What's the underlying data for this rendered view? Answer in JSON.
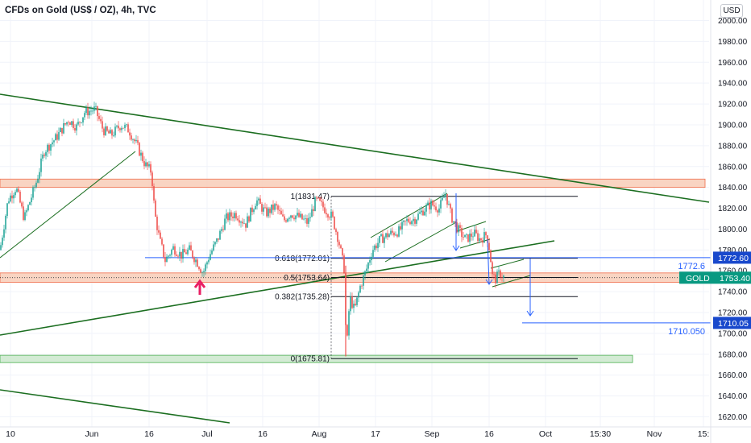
{
  "header": {
    "title": "CFDs on Gold (US$ / OZ), 4h, TVC",
    "currency": "USD"
  },
  "chart_data": {
    "type": "candlestick",
    "symbol": "GOLD",
    "ylim": [
      1615,
      2008
    ],
    "y_ticks": [
      1620,
      1640,
      1660,
      1680,
      1700,
      1720,
      1740,
      1760,
      1780,
      1800,
      1820,
      1840,
      1860,
      1880,
      1900,
      1920,
      1940,
      1960,
      1980,
      2000
    ],
    "x_ticks": [
      "10",
      "Jun",
      "16",
      "Jul",
      "16",
      "Aug",
      "17",
      "Sep",
      "16",
      "Oct",
      "15:30",
      "Nov",
      "15:"
    ],
    "grid": true,
    "colors": {
      "up": "#26a69a",
      "down": "#ef5350",
      "trendline": "#1b6e20",
      "fib": "#131722",
      "blue": "#2962ff",
      "zone_red": "#f7c9b3",
      "zone_green": "#c8e6c9",
      "price_tag": "#089981",
      "arrow": "#e91e63"
    },
    "price_path": [
      [
        0,
        1780
      ],
      [
        10,
        1828
      ],
      [
        20,
        1840
      ],
      [
        30,
        1810
      ],
      [
        45,
        1845
      ],
      [
        55,
        1875
      ],
      [
        70,
        1888
      ],
      [
        85,
        1905
      ],
      [
        95,
        1898
      ],
      [
        105,
        1912
      ],
      [
        118,
        1915
      ],
      [
        128,
        1895
      ],
      [
        138,
        1890
      ],
      [
        150,
        1900
      ],
      [
        160,
        1895
      ],
      [
        170,
        1880
      ],
      [
        180,
        1862
      ],
      [
        188,
        1855
      ],
      [
        192,
        1815
      ],
      [
        198,
        1790
      ],
      [
        205,
        1770
      ],
      [
        215,
        1782
      ],
      [
        225,
        1775
      ],
      [
        235,
        1780
      ],
      [
        245,
        1768
      ],
      [
        252,
        1758
      ],
      [
        260,
        1775
      ],
      [
        270,
        1790
      ],
      [
        280,
        1810
      ],
      [
        292,
        1815
      ],
      [
        305,
        1805
      ],
      [
        318,
        1828
      ],
      [
        330,
        1815
      ],
      [
        342,
        1822
      ],
      [
        352,
        1808
      ],
      [
        360,
        1815
      ],
      [
        370,
        1812
      ],
      [
        382,
        1806
      ],
      [
        392,
        1828
      ],
      [
        400,
        1822
      ],
      [
        412,
        1812
      ],
      [
        420,
        1790
      ],
      [
        427,
        1762
      ],
      [
        430,
        1680
      ],
      [
        434,
        1735
      ],
      [
        440,
        1722
      ],
      [
        447,
        1745
      ],
      [
        455,
        1762
      ],
      [
        462,
        1780
      ],
      [
        472,
        1790
      ],
      [
        482,
        1795
      ],
      [
        495,
        1798
      ],
      [
        505,
        1808
      ],
      [
        515,
        1810
      ],
      [
        525,
        1818
      ],
      [
        535,
        1824
      ],
      [
        545,
        1820
      ],
      [
        553,
        1834
      ],
      [
        560,
        1812
      ],
      [
        568,
        1800
      ],
      [
        578,
        1790
      ],
      [
        588,
        1796
      ],
      [
        596,
        1790
      ],
      [
        604,
        1795
      ],
      [
        608,
        1778
      ],
      [
        611,
        1755
      ],
      [
        615,
        1752
      ],
      [
        620,
        1758
      ],
      [
        625,
        1754
      ]
    ],
    "horizontal_lines": [
      {
        "price": 1772.6,
        "from_x": 180,
        "label": "1772.6",
        "color": "#2962ff"
      },
      {
        "price": 1710.05,
        "from_x": 648,
        "label": "1710.050",
        "color": "#2962ff"
      }
    ],
    "fib_levels": [
      {
        "label": "1(1831.47)",
        "price": 1831.47
      },
      {
        "label": "0.618(1772.01)",
        "price": 1772.01
      },
      {
        "label": "0.5(1753.64)",
        "price": 1753.64
      },
      {
        "label": "0.382(1735.28)",
        "price": 1735.28
      },
      {
        "label": "0(1675.81)",
        "price": 1675.81
      }
    ],
    "zones": [
      {
        "from": 1840,
        "to": 1848,
        "color": "#f7c9b3"
      },
      {
        "from": 1749,
        "to": 1758,
        "color": "#f7c9b3"
      },
      {
        "from": 1672,
        "to": 1679,
        "color": "#c8e6c9"
      }
    ],
    "price_tags": [
      {
        "label": "1772.60",
        "price": 1772.6,
        "kind": "blue"
      },
      {
        "label": "GOLD",
        "value": "1753.40",
        "price": 1753.4,
        "kind": "green"
      },
      {
        "label": "1710.05",
        "price": 1710.05,
        "kind": "blue"
      }
    ]
  }
}
